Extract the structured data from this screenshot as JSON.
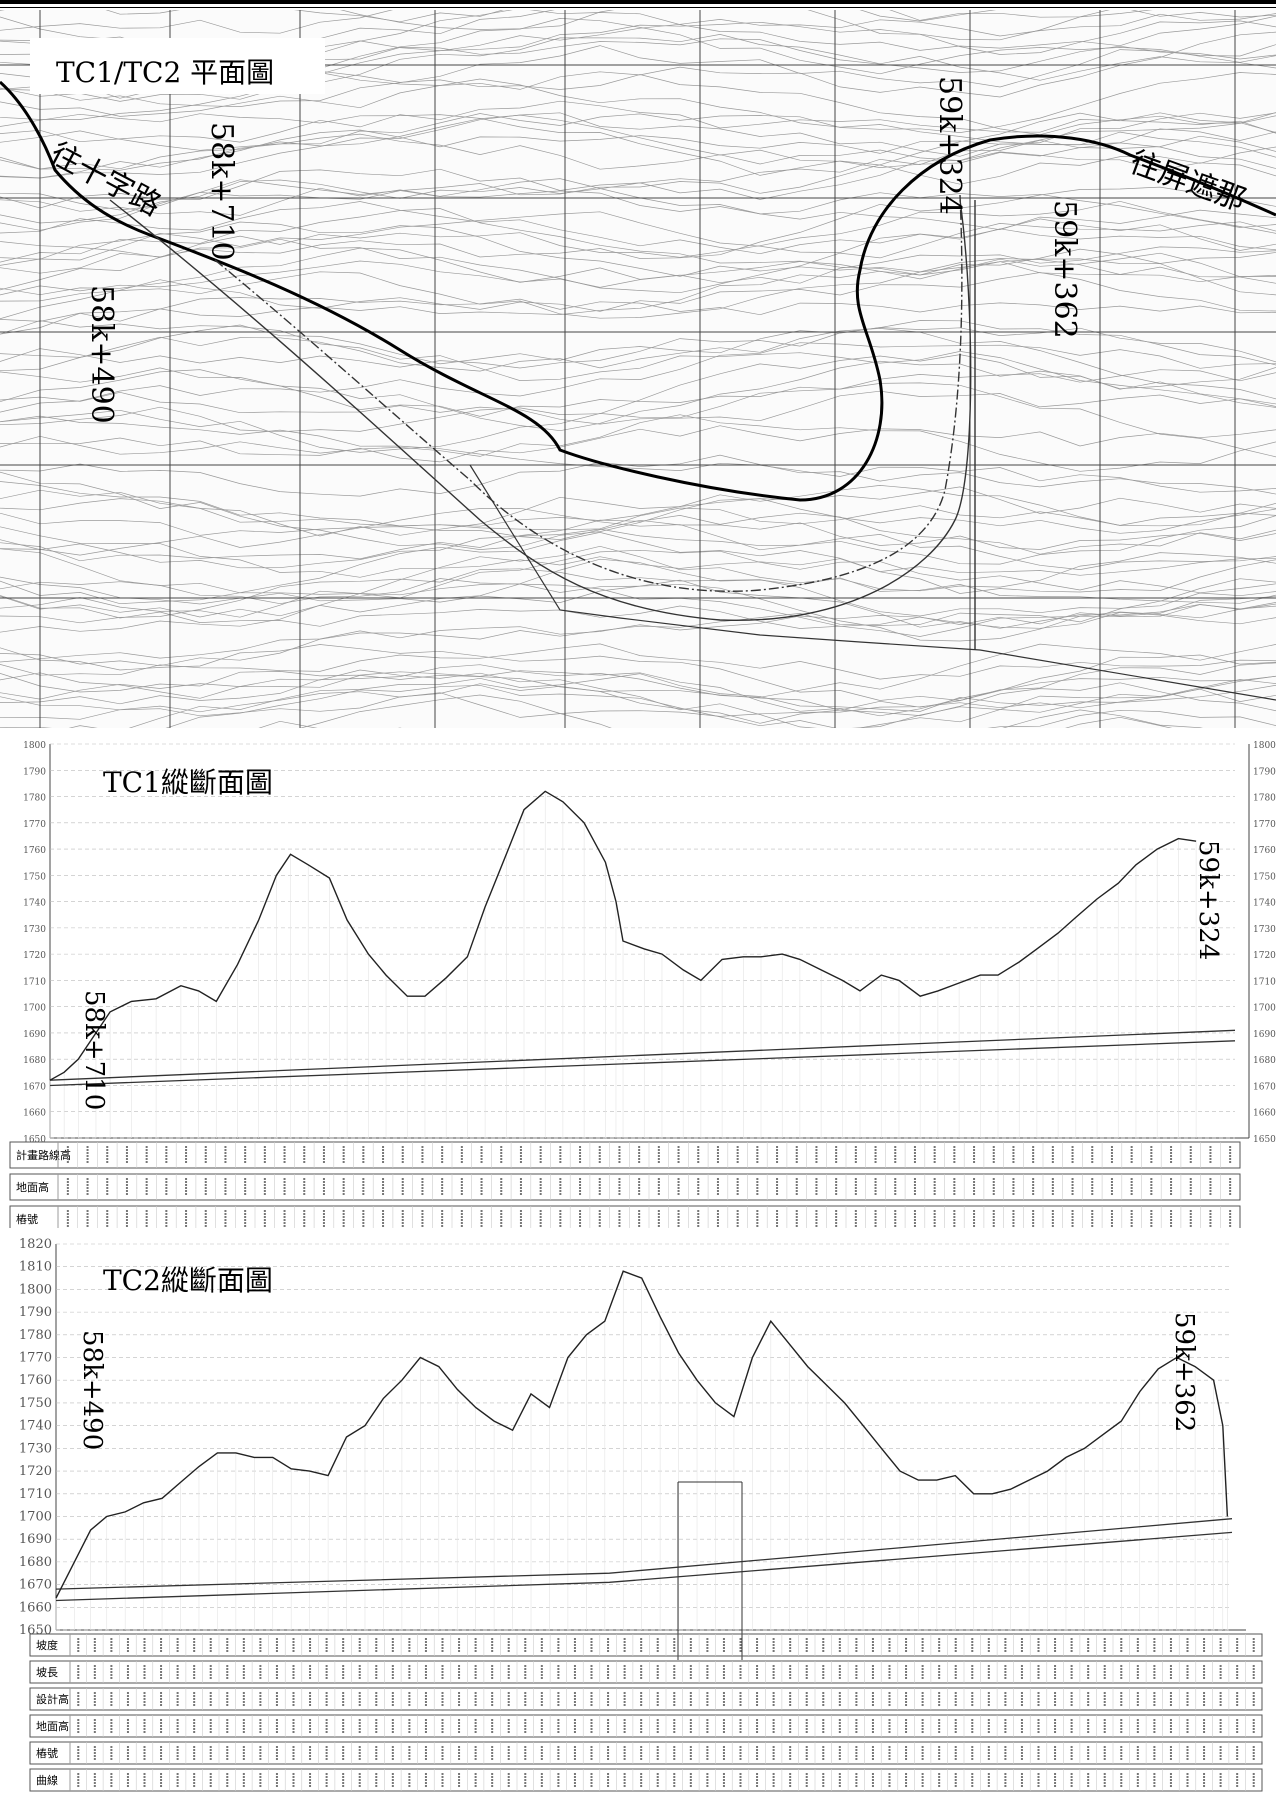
{
  "plan": {
    "title": "TC1/TC2 平面圖",
    "labels": {
      "to_shizilu": "往十字路",
      "to_pingzhena": "往屏遮那",
      "sta_58k710": "58k+710",
      "sta_58k490": "58k+490",
      "sta_59k324": "59k+324",
      "sta_59k362": "59k+362"
    }
  },
  "tc1": {
    "title": "TC1縱斷面圖",
    "start_label": "58k+710",
    "end_label": "59k+324",
    "yticks": [
      "1800",
      "1790",
      "1780",
      "1770",
      "1760",
      "1750",
      "1740",
      "1730",
      "1720",
      "1710",
      "1700",
      "1690",
      "1680",
      "1670",
      "1660",
      "1650"
    ],
    "ylim": [
      1650,
      1800
    ],
    "row_labels": [
      "計畫路線高",
      "地面高",
      "樁號"
    ],
    "ground": [
      [
        0,
        1672
      ],
      [
        4,
        1675
      ],
      [
        8,
        1680
      ],
      [
        13,
        1690
      ],
      [
        17,
        1698
      ],
      [
        23,
        1702
      ],
      [
        30,
        1703
      ],
      [
        37,
        1708
      ],
      [
        42,
        1706
      ],
      [
        47,
        1702
      ],
      [
        53,
        1716
      ],
      [
        59,
        1733
      ],
      [
        64,
        1750
      ],
      [
        68,
        1758
      ],
      [
        73,
        1754
      ],
      [
        79,
        1749
      ],
      [
        84,
        1733
      ],
      [
        90,
        1720
      ],
      [
        95,
        1712
      ],
      [
        101,
        1704
      ],
      [
        106,
        1704
      ],
      [
        112,
        1711
      ],
      [
        118,
        1719
      ],
      [
        123,
        1738
      ],
      [
        129,
        1758
      ],
      [
        134,
        1775
      ],
      [
        140,
        1782
      ],
      [
        145,
        1778
      ],
      [
        151,
        1770
      ],
      [
        157,
        1755
      ],
      [
        160,
        1740
      ],
      [
        162,
        1725
      ],
      [
        168,
        1722
      ],
      [
        173,
        1720
      ],
      [
        179,
        1714
      ],
      [
        184,
        1710
      ],
      [
        190,
        1718
      ],
      [
        196,
        1719
      ],
      [
        201,
        1719
      ],
      [
        207,
        1720
      ],
      [
        212,
        1718
      ],
      [
        218,
        1714
      ],
      [
        224,
        1710
      ],
      [
        229,
        1706
      ],
      [
        235,
        1712
      ],
      [
        240,
        1710
      ],
      [
        246,
        1704
      ],
      [
        251,
        1706
      ],
      [
        257,
        1709
      ],
      [
        263,
        1712
      ],
      [
        268,
        1712
      ],
      [
        274,
        1717
      ],
      [
        279,
        1722
      ],
      [
        285,
        1728
      ],
      [
        290,
        1734
      ],
      [
        296,
        1741
      ],
      [
        302,
        1747
      ],
      [
        307,
        1754
      ],
      [
        313,
        1760
      ],
      [
        319,
        1764
      ],
      [
        324,
        1763
      ]
    ],
    "x_domain": [
      0,
      335
    ],
    "design_upper": [
      [
        0,
        1672
      ],
      [
        335,
        1691
      ]
    ],
    "design_lower": [
      [
        0,
        1670
      ],
      [
        335,
        1687
      ]
    ]
  },
  "tc2": {
    "title": "TC2縱斷面圖",
    "start_label": "58k+490",
    "end_label": "59k+362",
    "yticks": [
      "1820",
      "1810",
      "1800",
      "1790",
      "1780",
      "1770",
      "1760",
      "1750",
      "1740",
      "1730",
      "1720",
      "1710",
      "1700",
      "1690",
      "1680",
      "1670",
      "1660",
      "1650"
    ],
    "ylim": [
      1650,
      1820
    ],
    "row_labels": [
      "坡度",
      "坡長",
      "設計高",
      "地面高",
      "樁號",
      "曲線"
    ],
    "ground": [
      [
        0,
        1664
      ],
      [
        8,
        1680
      ],
      [
        15,
        1694
      ],
      [
        22,
        1700
      ],
      [
        30,
        1702
      ],
      [
        38,
        1706
      ],
      [
        46,
        1708
      ],
      [
        54,
        1715
      ],
      [
        62,
        1722
      ],
      [
        70,
        1728
      ],
      [
        78,
        1728
      ],
      [
        86,
        1726
      ],
      [
        94,
        1726
      ],
      [
        102,
        1721
      ],
      [
        110,
        1720
      ],
      [
        118,
        1718
      ],
      [
        126,
        1735
      ],
      [
        134,
        1740
      ],
      [
        142,
        1752
      ],
      [
        150,
        1760
      ],
      [
        158,
        1770
      ],
      [
        166,
        1766
      ],
      [
        174,
        1756
      ],
      [
        182,
        1748
      ],
      [
        190,
        1742
      ],
      [
        198,
        1738
      ],
      [
        206,
        1754
      ],
      [
        214,
        1748
      ],
      [
        222,
        1770
      ],
      [
        230,
        1780
      ],
      [
        238,
        1786
      ],
      [
        246,
        1808
      ],
      [
        254,
        1805
      ],
      [
        262,
        1788
      ],
      [
        270,
        1772
      ],
      [
        278,
        1760
      ],
      [
        286,
        1750
      ],
      [
        294,
        1744
      ],
      [
        302,
        1770
      ],
      [
        310,
        1786
      ],
      [
        318,
        1776
      ],
      [
        326,
        1766
      ],
      [
        334,
        1758
      ],
      [
        342,
        1750
      ],
      [
        350,
        1740
      ],
      [
        358,
        1730
      ],
      [
        366,
        1720
      ],
      [
        374,
        1716
      ],
      [
        382,
        1716
      ],
      [
        390,
        1718
      ],
      [
        398,
        1710
      ],
      [
        406,
        1710
      ],
      [
        414,
        1712
      ],
      [
        422,
        1716
      ],
      [
        430,
        1720
      ],
      [
        438,
        1726
      ],
      [
        446,
        1730
      ],
      [
        454,
        1736
      ],
      [
        462,
        1742
      ],
      [
        470,
        1755
      ],
      [
        478,
        1765
      ],
      [
        486,
        1770
      ],
      [
        494,
        1766
      ],
      [
        502,
        1760
      ],
      [
        506,
        1740
      ],
      [
        508,
        1700
      ]
    ],
    "x_domain": [
      0,
      510
    ],
    "design_upper": [
      [
        0,
        1668
      ],
      [
        240,
        1675
      ],
      [
        510,
        1699
      ]
    ],
    "design_lower": [
      [
        0,
        1663
      ],
      [
        240,
        1671
      ],
      [
        510,
        1693
      ]
    ]
  }
}
